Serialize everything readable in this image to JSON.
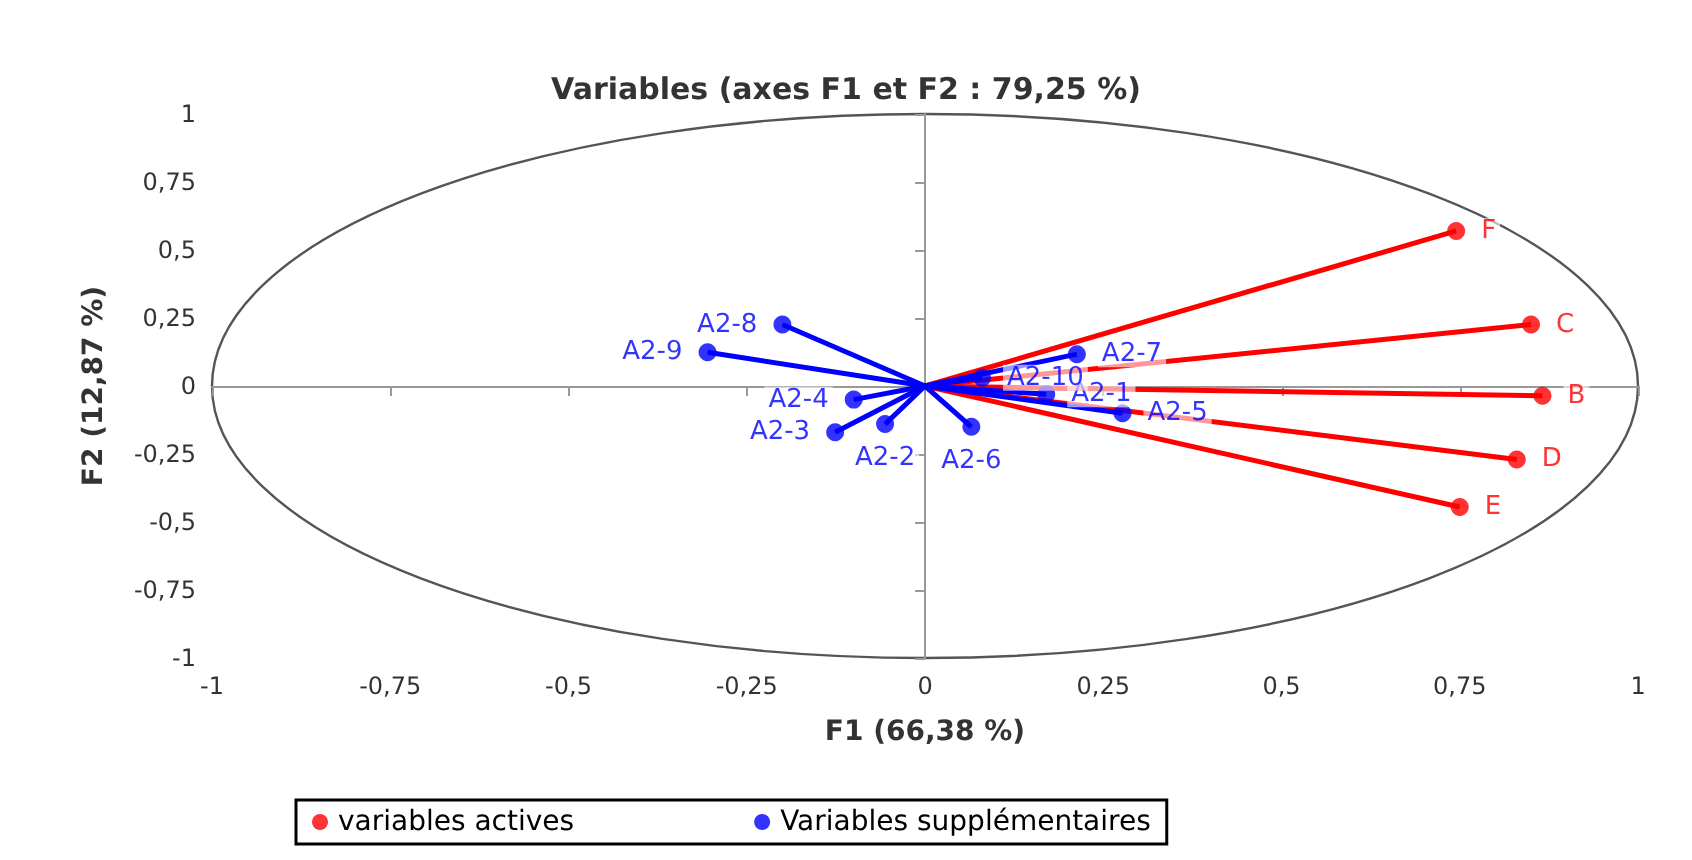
{
  "chart_data": {
    "type": "scatter",
    "title": "Variables (axes F1 et F2 : 79,25 %)",
    "xlabel": "F1 (66,38 %)",
    "ylabel": "F2 (12,87 %)",
    "xlim": [
      -1,
      1
    ],
    "ylim": [
      -1,
      1
    ],
    "xticks": [
      -1,
      {
        "value": -0.75,
        "label": "-0,75"
      },
      {
        "value": -0.5,
        "label": "-0,5"
      },
      {
        "value": -0.25,
        "label": "-0,25"
      },
      0,
      {
        "value": 0.25,
        "label": "0,25"
      },
      {
        "value": 0.5,
        "label": "0,5"
      },
      {
        "value": 0.75,
        "label": "0,75"
      },
      1
    ],
    "yticks": [
      -1,
      {
        "value": -0.75,
        "label": "-0,75"
      },
      {
        "value": -0.5,
        "label": "-0,5"
      },
      {
        "value": -0.25,
        "label": "-0,25"
      },
      0,
      {
        "value": 0.25,
        "label": "0,25"
      },
      {
        "value": 0.5,
        "label": "0,5"
      },
      {
        "value": 0.75,
        "label": "0,75"
      },
      1
    ],
    "legend": "bottom",
    "marker": "circle",
    "series": [
      {
        "name": "variables actives",
        "color": "#ff0000",
        "x": [
          0.745,
          0.85,
          0.866,
          0.83,
          0.75
        ],
        "values": [
          0.57,
          0.226,
          -0.036,
          -0.27,
          -0.445
        ],
        "value_labels": [
          "F",
          "C",
          "B",
          "D",
          "E"
        ]
      },
      {
        "name": "Variables supplémentaires",
        "color": "#0000ff",
        "x": [
          0.17,
          -0.056,
          -0.126,
          -0.1,
          0.277,
          0.065,
          0.213,
          -0.2,
          -0.305,
          0.08
        ],
        "values": [
          -0.03,
          -0.14,
          -0.17,
          -0.05,
          -0.1,
          -0.15,
          0.117,
          0.226,
          0.124,
          0.03
        ],
        "value_labels": [
          "A2-1",
          "A2-2",
          "A2-3",
          "A2-4",
          "A2-5",
          "A2-6",
          "A2-7",
          "A2-8",
          "A2-9",
          "A2-10"
        ]
      }
    ]
  }
}
